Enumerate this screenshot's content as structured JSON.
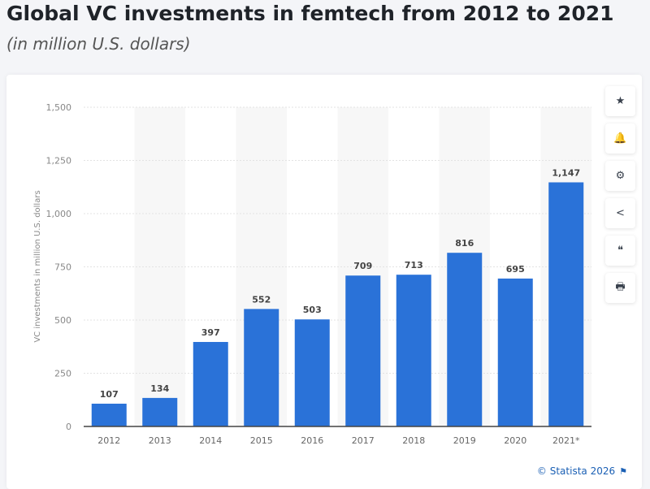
{
  "header": {
    "title": "Global VC investments in femtech from 2012 to 2021",
    "subtitle": "(in million U.S. dollars)"
  },
  "tools": [
    {
      "icon": "star-icon",
      "glyph": "★"
    },
    {
      "icon": "bell-icon",
      "glyph": "🔔"
    },
    {
      "icon": "gear-icon",
      "glyph": "⚙"
    },
    {
      "icon": "share-icon",
      "glyph": "<"
    },
    {
      "icon": "quote-icon",
      "glyph": "❝"
    },
    {
      "icon": "print-icon",
      "glyph": "🖶"
    }
  ],
  "credit": "© Statista 2026",
  "colors": {
    "bar": "#2a72d8",
    "band": "#f7f7f7",
    "grid": "#e3e3e3"
  },
  "chart_data": {
    "type": "bar",
    "title": "Global VC investments in femtech from 2012 to 2021",
    "subtitle": "(in million U.S. dollars)",
    "xlabel": "",
    "ylabel": "VC investments in million U.S. dollars",
    "categories": [
      "2012",
      "2013",
      "2014",
      "2015",
      "2016",
      "2017",
      "2018",
      "2019",
      "2020",
      "2021*"
    ],
    "values": [
      107,
      134,
      397,
      552,
      503,
      709,
      713,
      816,
      695,
      1147
    ],
    "value_labels": [
      "107",
      "134",
      "397",
      "552",
      "503",
      "709",
      "713",
      "816",
      "695",
      "1,147"
    ],
    "ylim": [
      0,
      1500
    ],
    "yticks": [
      0,
      250,
      500,
      750,
      1000,
      1250,
      1500
    ],
    "ytick_labels": [
      "0",
      "250",
      "500",
      "750",
      "1,000",
      "1,250",
      "1,500"
    ],
    "grid": true,
    "legend": "none"
  }
}
